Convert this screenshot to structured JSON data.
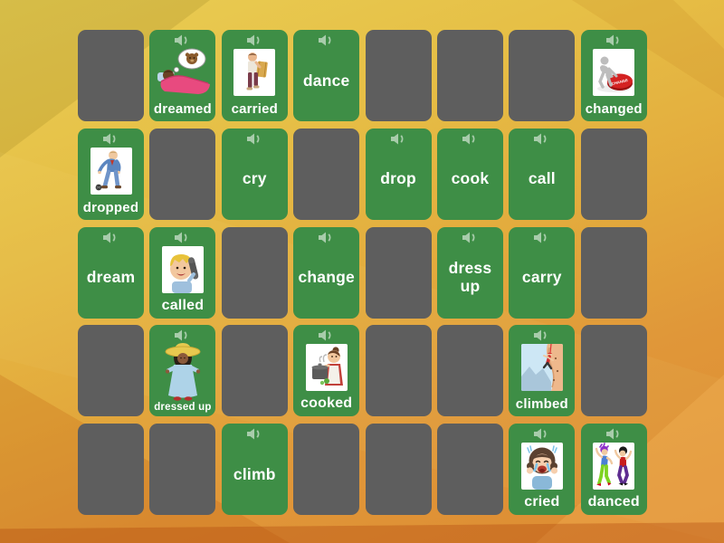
{
  "app": {
    "name": "matching-pairs-game-board",
    "audio_icon": "speaker-icon"
  },
  "colors": {
    "card_face_green": "#3E8E46",
    "card_back_gray": "#5E5E5E",
    "label_white": "#FFFFFF",
    "background_gold": "#E3AB3D",
    "background_orange": "#DD8A31",
    "climbed_image_bg": "#CDE7F5",
    "picture_image_bg": "#FFFFFF"
  },
  "board": {
    "rows": 5,
    "cols": 8,
    "cards": [
      {
        "kind": "hidden"
      },
      {
        "kind": "picture",
        "label": "dreamed",
        "icon": "dreamed-illustration",
        "image_bg": "transparent"
      },
      {
        "kind": "picture",
        "label": "carried",
        "icon": "carried-illustration",
        "image_bg": "white"
      },
      {
        "kind": "word",
        "label": "dance"
      },
      {
        "kind": "hidden"
      },
      {
        "kind": "hidden"
      },
      {
        "kind": "hidden"
      },
      {
        "kind": "picture",
        "label": "changed",
        "icon": "changed-illustration",
        "image_bg": "white",
        "button_text": "CHANGE"
      },
      {
        "kind": "picture",
        "label": "dropped",
        "icon": "dropped-illustration",
        "image_bg": "white"
      },
      {
        "kind": "hidden"
      },
      {
        "kind": "word",
        "label": "cry"
      },
      {
        "kind": "hidden"
      },
      {
        "kind": "word",
        "label": "drop"
      },
      {
        "kind": "word",
        "label": "cook"
      },
      {
        "kind": "word",
        "label": "call"
      },
      {
        "kind": "hidden"
      },
      {
        "kind": "word",
        "label": "dream"
      },
      {
        "kind": "picture",
        "label": "called",
        "icon": "called-illustration",
        "image_bg": "white"
      },
      {
        "kind": "hidden"
      },
      {
        "kind": "word",
        "label": "change"
      },
      {
        "kind": "hidden"
      },
      {
        "kind": "word",
        "label": "dress up"
      },
      {
        "kind": "word",
        "label": "carry"
      },
      {
        "kind": "hidden"
      },
      {
        "kind": "hidden"
      },
      {
        "kind": "picture",
        "label": "dressed up",
        "icon": "dressed-up-illustration",
        "image_bg": "transparent"
      },
      {
        "kind": "hidden"
      },
      {
        "kind": "picture",
        "label": "cooked",
        "icon": "cooked-illustration",
        "image_bg": "white"
      },
      {
        "kind": "hidden"
      },
      {
        "kind": "hidden"
      },
      {
        "kind": "picture",
        "label": "climbed",
        "icon": "climbed-illustration",
        "image_bg": "lightblue"
      },
      {
        "kind": "hidden"
      },
      {
        "kind": "hidden"
      },
      {
        "kind": "hidden"
      },
      {
        "kind": "word",
        "label": "climb"
      },
      {
        "kind": "hidden"
      },
      {
        "kind": "hidden"
      },
      {
        "kind": "hidden"
      },
      {
        "kind": "picture",
        "label": "cried",
        "icon": "cried-illustration",
        "image_bg": "white"
      },
      {
        "kind": "picture",
        "label": "danced",
        "icon": "danced-illustration",
        "image_bg": "white"
      }
    ]
  }
}
